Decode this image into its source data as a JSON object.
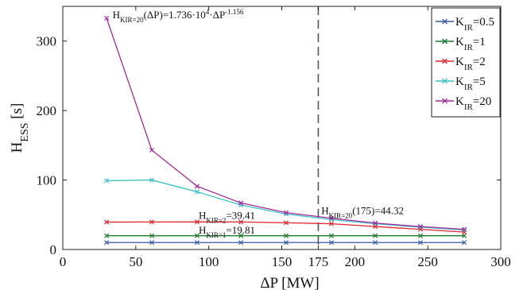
{
  "chart_data": {
    "type": "line",
    "xlabel": "ΔP [MW]",
    "ylabel": "H_ESS [s]",
    "xlim": [
      0,
      300
    ],
    "ylim": [
      0,
      350
    ],
    "xticks": [
      0,
      50,
      100,
      150,
      175,
      200,
      250,
      300
    ],
    "yticks": [
      0,
      100,
      200,
      300
    ],
    "grid": false,
    "legend_position": "top-right",
    "x": [
      30,
      61,
      92,
      122,
      153,
      184,
      214,
      245,
      275
    ],
    "series": [
      {
        "name": "K_IR=0.5",
        "color": "#3a5aa6",
        "marker": "x",
        "values": [
          10,
          10,
          10,
          10,
          10,
          10,
          10,
          10,
          10
        ]
      },
      {
        "name": "K_IR=1",
        "color": "#1a7a2e",
        "marker": "x",
        "values": [
          19.8,
          19.8,
          19.8,
          19.8,
          19.8,
          19.8,
          19.8,
          19.8,
          19.8
        ]
      },
      {
        "name": "K_IR=2",
        "color": "#e0242a",
        "marker": "x",
        "values": [
          39.4,
          39.6,
          39.7,
          39.6,
          38.5,
          37,
          33,
          29,
          25
        ]
      },
      {
        "name": "K_IR=5",
        "color": "#3ec1c9",
        "marker": "x",
        "values": [
          99,
          100,
          83,
          64,
          51,
          43,
          37,
          32,
          28
        ]
      },
      {
        "name": "K_IR=20",
        "color": "#a02b9a",
        "marker": "x",
        "values": [
          333,
          143,
          91,
          67,
          53,
          45,
          38,
          33,
          29
        ]
      }
    ],
    "vline": {
      "x": 175
    },
    "annotations": [
      {
        "text": "H_KIR=20(ΔP)=1.736·10^4·ΔP^-1.156",
        "x": 33,
        "y": 333
      },
      {
        "text": "H_KIR=20(175)=44.32",
        "x": 176,
        "y": 51
      },
      {
        "text": "H_KIR=2=39.41",
        "x": 92,
        "y": 44
      },
      {
        "text": "H_KIR=1=19.81",
        "x": 92,
        "y": 23
      }
    ]
  }
}
